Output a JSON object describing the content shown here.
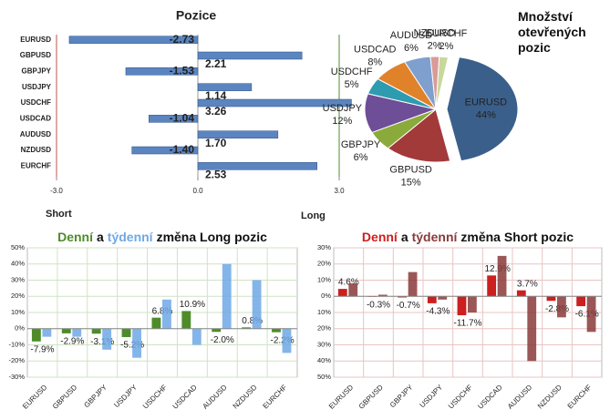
{
  "chart_data": [
    {
      "type": "hbar",
      "title": "Pozice",
      "categories": [
        "EURUSD",
        "GBPUSD",
        "GBPJPY",
        "USDJPY",
        "USDCHF",
        "USDCAD",
        "AUDUSD",
        "NZDUSD",
        "EURCHF"
      ],
      "values": [
        -2.73,
        2.21,
        -1.53,
        1.14,
        3.26,
        -1.04,
        1.7,
        -1.4,
        2.53
      ],
      "value_labels": [
        "-2.73",
        "2.21",
        "-1.53",
        "1.14",
        "3.26",
        "-1.04",
        "1.70",
        "-1.40",
        "2.53"
      ],
      "color": "#5b85c0",
      "xlim": [
        -3,
        3
      ],
      "xticks": [
        {
          "value": -3,
          "label": "-3.0"
        },
        {
          "value": 0,
          "label": "0.0"
        },
        {
          "value": 3,
          "label": "3.0"
        }
      ],
      "xlabel_left": "Short",
      "xlabel_right": "Long"
    },
    {
      "type": "pie",
      "title": "Množství otevřených pozic",
      "categories": [
        "EURUSD",
        "GBPUSD",
        "GBPJPY",
        "USDJPY",
        "USDCHF",
        "USDCAD",
        "AUDUSD",
        "NZDUSD",
        "EURCHF"
      ],
      "values": [
        44,
        15,
        6,
        12,
        5,
        8,
        6,
        2,
        2
      ],
      "value_labels": [
        "44%",
        "15%",
        "6%",
        "12%",
        "5%",
        "8%",
        "6%",
        "2%",
        "2%"
      ],
      "colors": [
        "#3a5f8a",
        "#a33a3a",
        "#8aab3c",
        "#6e4e96",
        "#2e9bb0",
        "#e0822a",
        "#7f9fce",
        "#d99a9a",
        "#c8d89a"
      ]
    },
    {
      "type": "bar",
      "title": [
        "Denní",
        "a",
        "týdenní",
        "změna Long pozic"
      ],
      "categories": [
        "EURUSD",
        "GBPUSD",
        "GBPJPY",
        "USDJPY",
        "USDCHF",
        "USDCAD",
        "AUDUSD",
        "NZDUSD",
        "EURCHF"
      ],
      "series": [
        {
          "color": "#4e8c2a",
          "values": [
            -7.9,
            -2.9,
            -3.1,
            -5.2,
            6.8,
            10.9,
            -2.0,
            0.8,
            -2.2
          ],
          "value_labels": [
            "-7.9%",
            "-2.9%",
            "-3.1%",
            "-5.2%",
            "6.8%",
            "10.9%",
            "-2.0%",
            "0.8%",
            "-2.2%"
          ]
        },
        {
          "color": "#6fa8e6",
          "values": [
            -5,
            -5,
            -13,
            -18,
            18,
            -10,
            40,
            30,
            -15
          ]
        }
      ],
      "ylim": [
        -30,
        50
      ],
      "yticks": [
        {
          "value": -30,
          "label": "-30%"
        },
        {
          "value": -20,
          "label": "-20%"
        },
        {
          "value": -10,
          "label": "-10%"
        },
        {
          "value": 0,
          "label": "0%"
        },
        {
          "value": 10,
          "label": "10%"
        },
        {
          "value": 20,
          "label": "20%"
        },
        {
          "value": 30,
          "label": "30%"
        },
        {
          "value": 40,
          "label": "40%"
        },
        {
          "value": 50,
          "label": "50%"
        }
      ],
      "grid": true
    },
    {
      "type": "bar",
      "title": [
        "Denní",
        "a",
        "týdenní",
        "změna Short pozic"
      ],
      "categories": [
        "EURUSD",
        "GBPUSD",
        "GBPJPY",
        "USDJPY",
        "USDCHF",
        "USDCAD",
        "AUDUSD",
        "NZDUSD",
        "EURCHF"
      ],
      "series": [
        {
          "color": "#cc1f1f",
          "values": [
            4.6,
            -0.3,
            -0.7,
            -4.3,
            -11.7,
            12.9,
            3.7,
            -2.8,
            -6.1
          ],
          "value_labels": [
            "4.6%",
            "-0.3%",
            "-0.7%",
            "-4.3%",
            "-11.7%",
            "12.9%",
            "3.7%",
            "-2.8%",
            "-6.1%"
          ]
        },
        {
          "color": "#8a3a3a",
          "values": [
            8,
            1,
            15,
            -2,
            -10,
            25,
            -40,
            -13,
            -22
          ]
        }
      ],
      "ylim": [
        -50,
        30
      ],
      "yticks": [
        {
          "value": -50,
          "label": "50%"
        },
        {
          "value": -40,
          "label": "40%"
        },
        {
          "value": -30,
          "label": "30%"
        },
        {
          "value": -20,
          "label": "20%"
        },
        {
          "value": -10,
          "label": "10%"
        },
        {
          "value": 0,
          "label": "0%"
        },
        {
          "value": 10,
          "label": "10%"
        },
        {
          "value": 20,
          "label": "20%"
        },
        {
          "value": 30,
          "label": "30%"
        }
      ],
      "grid": true
    }
  ]
}
